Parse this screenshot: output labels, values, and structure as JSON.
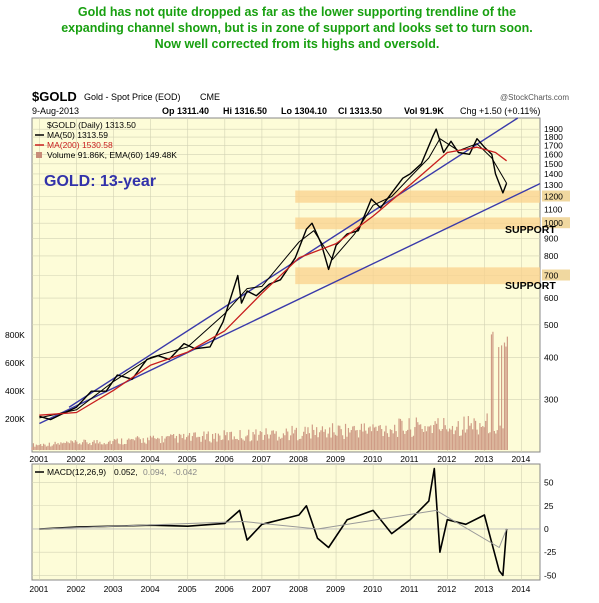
{
  "annotation": "Gold has not quite dropped as far as the lower supporting trendline of the expanding channel shown, but is in zone of support and looks set to turn soon. Now well corrected from its highs and oversold.",
  "header": {
    "symbol": "$GOLD",
    "name": "Gold - Spot Price (EOD)",
    "exchange": "CME",
    "credit": "@StockCharts.com",
    "date": "9-Aug-2013",
    "open": "Op 1311.40",
    "high": "Hi 1316.50",
    "low": "Lo 1304.10",
    "close": "Cl 1313.50",
    "volume": "Vol 91.9K",
    "change": "Chg +1.50 (+0.11%)"
  },
  "legend": {
    "price": "$GOLD (Daily) 1313.50",
    "ma50": "MA(50) 1313.59",
    "ma200": "MA(200) 1530.58",
    "volume": "Volume 91.86K, EMA(60) 149.48K"
  },
  "chart_title": "GOLD: 13-year",
  "support_labels": [
    "SUPPORT",
    "SUPPORT"
  ],
  "macd_label": {
    "name": "MACD(12,26,9)",
    "v1": "0.052,",
    "v2": "0.094,",
    "v3": "-0.042"
  },
  "colors": {
    "panel_bg": "#fdfcd8",
    "price": "#000000",
    "ma50": "#000000",
    "ma200": "#c81e1e",
    "trendlines": "#3a3aaa",
    "support_band": "#fad28c",
    "volume": "#c88c78",
    "title_blue": "#3232aa",
    "annotation": "#18a010",
    "highlight_tick": "#f0d8a0"
  },
  "chart_data": [
    {
      "type": "line",
      "title": "GOLD: 13-year",
      "scale": "log",
      "ylim": [
        210,
        2050
      ],
      "xlim": [
        2000.8,
        2014.5
      ],
      "y_ticks": [
        300,
        400,
        500,
        600,
        700,
        800,
        900,
        1000,
        1100,
        1200,
        1300,
        1400,
        1500,
        1600,
        1700,
        1800,
        1900
      ],
      "highlighted_ticks": [
        700,
        1000,
        1200
      ],
      "x_ticks": [
        "2001",
        "2002",
        "2003",
        "2004",
        "2005",
        "2006",
        "2007",
        "2008",
        "2009",
        "2010",
        "2011",
        "2012",
        "2013",
        "2014"
      ],
      "grid": true,
      "legend_position": "top-left",
      "support_zones": [
        [
          1150,
          1250
        ],
        [
          960,
          1040
        ],
        [
          660,
          740
        ]
      ],
      "trendlines": [
        {
          "name": "upper channel",
          "points": [
            [
              2001.8,
              285
            ],
            [
              2013.9,
              2050
            ]
          ]
        },
        {
          "name": "lower channel",
          "points": [
            [
              2001.0,
              255
            ],
            [
              2014.5,
              1310
            ]
          ]
        }
      ],
      "series": [
        {
          "name": "$GOLD",
          "x": [
            2001.0,
            2001.3,
            2001.6,
            2002.0,
            2002.4,
            2002.8,
            2003.1,
            2003.5,
            2003.9,
            2004.2,
            2004.5,
            2004.9,
            2005.2,
            2005.6,
            2005.95,
            2006.35,
            2006.45,
            2006.6,
            2006.85,
            2007.2,
            2007.5,
            2007.9,
            2008.2,
            2008.35,
            2008.6,
            2008.8,
            2009.0,
            2009.3,
            2009.6,
            2009.95,
            2010.2,
            2010.5,
            2010.8,
            2011.0,
            2011.3,
            2011.6,
            2011.7,
            2011.9,
            2012.1,
            2012.3,
            2012.6,
            2012.8,
            2013.0,
            2013.2,
            2013.3,
            2013.5,
            2013.6
          ],
          "values": [
            268,
            262,
            272,
            285,
            318,
            318,
            355,
            345,
            395,
            405,
            395,
            440,
            425,
            430,
            510,
            700,
            580,
            630,
            610,
            660,
            680,
            790,
            960,
            1000,
            870,
            730,
            860,
            930,
            950,
            1180,
            1110,
            1230,
            1360,
            1400,
            1500,
            1800,
            1900,
            1620,
            1750,
            1620,
            1600,
            1780,
            1680,
            1600,
            1400,
            1230,
            1313.5
          ]
        },
        {
          "name": "MA(50)",
          "x": [
            2001.0,
            2002.0,
            2003.0,
            2004.0,
            2005.0,
            2006.0,
            2006.6,
            2007.0,
            2008.0,
            2008.4,
            2008.9,
            2009.5,
            2010.0,
            2010.5,
            2011.0,
            2011.5,
            2011.8,
            2012.3,
            2012.8,
            2013.2,
            2013.6
          ],
          "values": [
            265,
            280,
            340,
            400,
            430,
            540,
            640,
            650,
            880,
            950,
            780,
            930,
            1130,
            1200,
            1370,
            1560,
            1780,
            1640,
            1720,
            1560,
            1313.59
          ]
        },
        {
          "name": "MA(200)",
          "x": [
            2001.0,
            2002.0,
            2003.0,
            2004.0,
            2005.0,
            2006.0,
            2007.0,
            2008.0,
            2009.0,
            2010.0,
            2011.0,
            2012.0,
            2012.8,
            2013.3,
            2013.6
          ],
          "values": [
            270,
            275,
            320,
            380,
            415,
            480,
            620,
            790,
            870,
            1050,
            1300,
            1620,
            1680,
            1620,
            1530.58
          ]
        }
      ]
    },
    {
      "type": "line",
      "title": "MACD(12,26,9)",
      "ylim": [
        -55,
        70
      ],
      "y_ticks": [
        50,
        25,
        0,
        -25,
        -50
      ],
      "x_ticks": [
        "2001",
        "2002",
        "2003",
        "2004",
        "2005",
        "2006",
        "2007",
        "2008",
        "2009",
        "2010",
        "2011",
        "2012",
        "2013",
        "2014"
      ],
      "series": [
        {
          "name": "MACD",
          "x": [
            2001.0,
            2002.0,
            2003.0,
            2004.0,
            2005.0,
            2006.0,
            2006.4,
            2006.6,
            2007.0,
            2008.0,
            2008.2,
            2008.5,
            2008.8,
            2009.3,
            2010.0,
            2010.5,
            2011.0,
            2011.5,
            2011.65,
            2011.8,
            2012.0,
            2012.5,
            2013.0,
            2013.2,
            2013.4,
            2013.5,
            2013.6
          ],
          "values": [
            0,
            2,
            3,
            4,
            3,
            6,
            20,
            -12,
            5,
            15,
            25,
            -10,
            -20,
            10,
            20,
            -5,
            10,
            30,
            65,
            -25,
            10,
            5,
            15,
            -15,
            -45,
            -50,
            0.052
          ]
        },
        {
          "name": "Signal",
          "x": [
            2001.0,
            2006.5,
            2008.5,
            2011.7,
            2013.4,
            2013.6
          ],
          "values": [
            0,
            8,
            0,
            20,
            -20,
            0.094
          ]
        },
        {
          "name": "Histogram",
          "x": [
            2013.6
          ],
          "values": [
            -0.042
          ]
        }
      ]
    }
  ]
}
